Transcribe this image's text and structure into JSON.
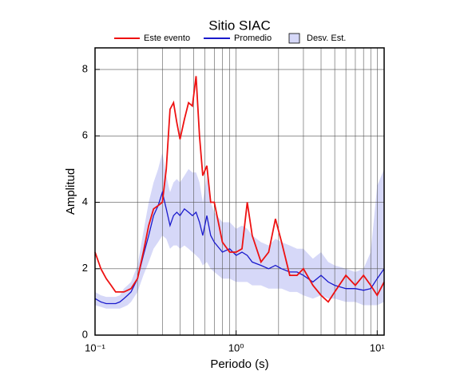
{
  "chart_data": {
    "type": "line",
    "title": "Sitio SIAC",
    "xlabel": "Periodo (s)",
    "ylabel": "Amplitud",
    "xscale": "log",
    "grid": true,
    "legend": "top",
    "xlim": [
      0.1,
      11.2
    ],
    "ylim": [
      0,
      8.65
    ],
    "xticks": [
      {
        "value": 0.1,
        "label": "10⁻¹"
      },
      {
        "value": 1,
        "label": "10⁰"
      },
      {
        "value": 10,
        "label": "10¹"
      }
    ],
    "xminor": [
      0.2,
      0.3,
      0.4,
      0.5,
      0.6,
      0.7,
      0.8,
      0.9,
      2,
      3,
      4,
      5,
      6,
      7,
      8,
      9
    ],
    "yticks": [
      0,
      2,
      4,
      6,
      8
    ],
    "x": [
      0.1,
      0.11,
      0.12,
      0.13,
      0.14,
      0.15,
      0.16,
      0.17,
      0.18,
      0.2,
      0.22,
      0.24,
      0.26,
      0.28,
      0.3,
      0.32,
      0.34,
      0.36,
      0.38,
      0.4,
      0.43,
      0.46,
      0.49,
      0.52,
      0.55,
      0.58,
      0.62,
      0.66,
      0.7,
      0.8,
      0.9,
      1.0,
      1.1,
      1.2,
      1.3,
      1.5,
      1.7,
      1.9,
      2.1,
      2.4,
      2.7,
      3.0,
      3.5,
      4.0,
      4.5,
      5.0,
      6,
      7,
      8,
      9,
      10,
      11.2
    ],
    "band": {
      "name": "Desv. Est.",
      "color": "#d6d8f8",
      "lower": [
        0.9,
        0.85,
        0.8,
        0.8,
        0.8,
        0.8,
        0.85,
        0.9,
        1.0,
        1.3,
        1.8,
        2.2,
        2.6,
        2.8,
        3.0,
        2.9,
        2.6,
        2.7,
        2.7,
        2.6,
        2.7,
        2.6,
        2.5,
        2.4,
        2.3,
        2.1,
        2.2,
        2.0,
        1.9,
        1.7,
        1.7,
        1.6,
        1.6,
        1.6,
        1.5,
        1.5,
        1.4,
        1.4,
        1.4,
        1.3,
        1.3,
        1.2,
        1.1,
        1.2,
        1.1,
        1.1,
        1.0,
        1.0,
        0.9,
        0.9,
        0.9,
        1.0
      ],
      "upper": [
        1.3,
        1.2,
        1.15,
        1.15,
        1.15,
        1.2,
        1.4,
        1.5,
        1.6,
        2.1,
        3.1,
        4.0,
        4.6,
        5.0,
        5.5,
        4.8,
        4.3,
        4.6,
        4.7,
        4.6,
        4.8,
        5.0,
        4.9,
        4.9,
        4.6,
        4.0,
        4.8,
        4.0,
        3.7,
        3.4,
        3.4,
        3.2,
        3.3,
        3.2,
        3.0,
        2.8,
        2.7,
        2.9,
        2.8,
        2.7,
        2.6,
        2.6,
        2.3,
        2.5,
        2.2,
        2.1,
        2.0,
        1.9,
        2.0,
        2.5,
        4.5,
        5.0
      ]
    },
    "series": [
      {
        "name": "Este evento",
        "color": "#ee1111",
        "values": [
          2.5,
          2.0,
          1.7,
          1.5,
          1.3,
          1.3,
          1.3,
          1.35,
          1.4,
          1.7,
          2.5,
          3.3,
          3.8,
          3.9,
          4.0,
          5.0,
          6.8,
          7.0,
          6.4,
          5.9,
          6.5,
          7.0,
          6.9,
          7.8,
          6.0,
          4.8,
          5.1,
          4.0,
          4.0,
          2.8,
          2.5,
          2.5,
          2.6,
          4.0,
          3.0,
          2.2,
          2.5,
          3.5,
          2.8,
          1.8,
          1.8,
          2.0,
          1.5,
          1.2,
          1.0,
          1.3,
          1.8,
          1.5,
          1.8,
          1.5,
          1.2,
          1.6
        ]
      },
      {
        "name": "Promedio",
        "color": "#1a1acc",
        "values": [
          1.1,
          1.0,
          0.95,
          0.95,
          0.95,
          1.0,
          1.1,
          1.2,
          1.3,
          1.7,
          2.4,
          3.0,
          3.6,
          3.9,
          4.3,
          3.8,
          3.3,
          3.6,
          3.7,
          3.6,
          3.8,
          3.7,
          3.6,
          3.7,
          3.4,
          3.0,
          3.6,
          3.0,
          2.8,
          2.5,
          2.6,
          2.4,
          2.5,
          2.4,
          2.2,
          2.1,
          2.0,
          2.1,
          2.0,
          1.9,
          1.9,
          1.8,
          1.6,
          1.8,
          1.6,
          1.5,
          1.4,
          1.4,
          1.35,
          1.4,
          1.7,
          2.0
        ]
      }
    ]
  }
}
